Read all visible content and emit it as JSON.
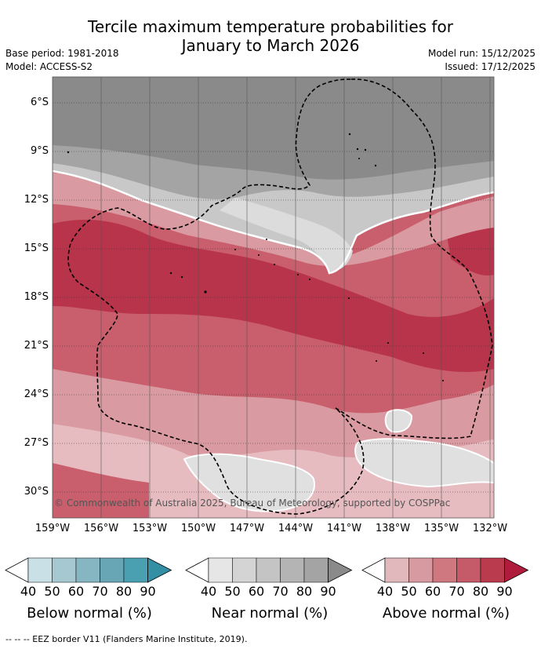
{
  "title_line1": "Tercile maximum temperature probabilities for",
  "title_line2": "January to March 2026",
  "base_period": "Base period: 1981-2018",
  "model": "Model: ACCESS-S2",
  "model_run": "Model run: 15/12/2025",
  "issued": "Issued: 17/12/2025",
  "map": {
    "lat_labels": [
      "6°S",
      "9°S",
      "12°S",
      "15°S",
      "18°S",
      "21°S",
      "24°S",
      "27°S",
      "30°S"
    ],
    "lon_labels": [
      "159°W",
      "156°W",
      "153°W",
      "150°W",
      "147°W",
      "144°W",
      "141°W",
      "138°W",
      "135°W",
      "132°W"
    ],
    "copyright": "© Commonwealth of Australia 2025, Bureau of Meteorology, supported by COSPPac",
    "colors": {
      "near_top": "#8a8a8a",
      "above_dark": "#b8344a",
      "above_mid": "#c95e6c",
      "above_light": "#d99aa1",
      "above_pale": "#e6bcc0",
      "near_light": "#dcdcdc"
    }
  },
  "legend": {
    "ticks": [
      "40",
      "50",
      "60",
      "70",
      "80",
      "90"
    ],
    "below": {
      "label": "Below normal (%)",
      "colors": [
        "#ffffff",
        "#c9e0e6",
        "#a6c9d1",
        "#86b6c2",
        "#68a6b5",
        "#4aa0b0",
        "#3390a4"
      ]
    },
    "near": {
      "label": "Near normal (%)",
      "colors": [
        "#ffffff",
        "#e6e6e6",
        "#d4d4d4",
        "#c4c4c4",
        "#b4b4b4",
        "#a4a4a4",
        "#8a8a8a"
      ]
    },
    "above": {
      "label": "Above normal (%)",
      "colors": [
        "#ffffff",
        "#e1b9bd",
        "#d89aa1",
        "#cf7880",
        "#c55a69",
        "#ba3a4e",
        "#b01c3c"
      ]
    }
  },
  "footnote": "--  --  -- EEZ border V11 (Flanders Marine Institute, 2019)."
}
